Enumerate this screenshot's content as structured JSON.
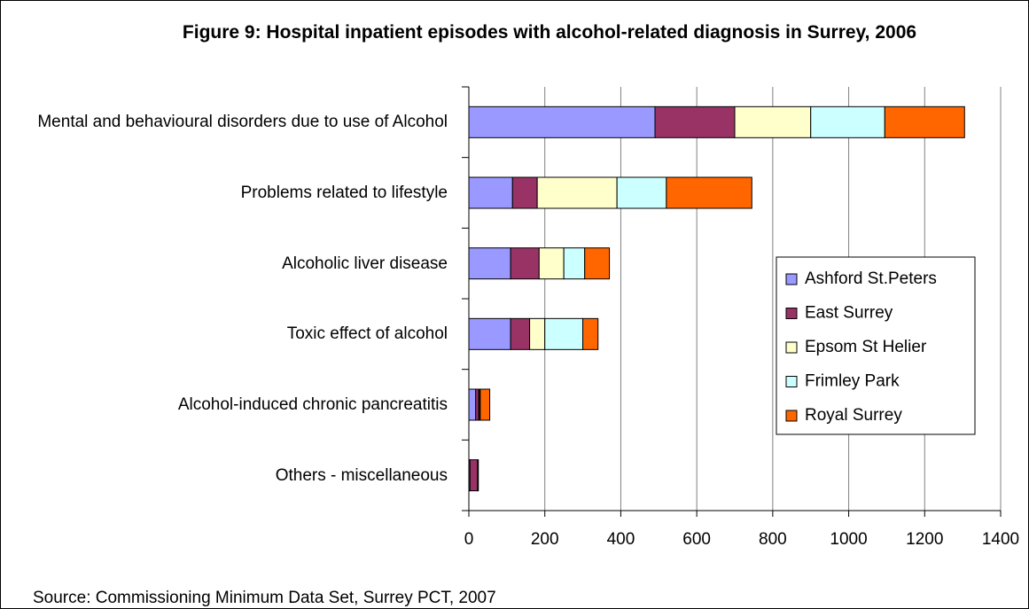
{
  "chart_data": {
    "type": "bar",
    "orientation": "horizontal",
    "stacked": true,
    "title": "Figure 9: Hospital inpatient episodes with alcohol-related diagnosis in Surrey, 2006",
    "categories": [
      "Mental and behavioural disorders due to use of Alcohol",
      "Problems related to lifestyle",
      "Alcoholic liver disease",
      "Toxic effect of alcohol",
      "Alcohol-induced chronic pancreatitis",
      "Others - miscellaneous"
    ],
    "series": [
      {
        "name": "Ashford St.Peters",
        "color": "#9999ff",
        "values": [
          490,
          115,
          110,
          110,
          18,
          3
        ]
      },
      {
        "name": "East Surrey",
        "color": "#993366",
        "values": [
          210,
          65,
          75,
          50,
          8,
          20
        ]
      },
      {
        "name": "Epsom St Helier",
        "color": "#ffffcc",
        "values": [
          200,
          210,
          65,
          40,
          2,
          0
        ]
      },
      {
        "name": "Frimley Park",
        "color": "#ccffff",
        "values": [
          195,
          130,
          55,
          100,
          2,
          0
        ]
      },
      {
        "name": "Royal Surrey",
        "color": "#ff6600",
        "values": [
          210,
          225,
          65,
          40,
          25,
          2
        ]
      }
    ],
    "xlim": [
      0,
      1400
    ],
    "xticks": [
      0,
      200,
      400,
      600,
      800,
      1000,
      1200,
      1400
    ],
    "grid": true,
    "legend": "right",
    "source": "Source: Commissioning Minimum Data Set, Surrey PCT, 2007"
  }
}
